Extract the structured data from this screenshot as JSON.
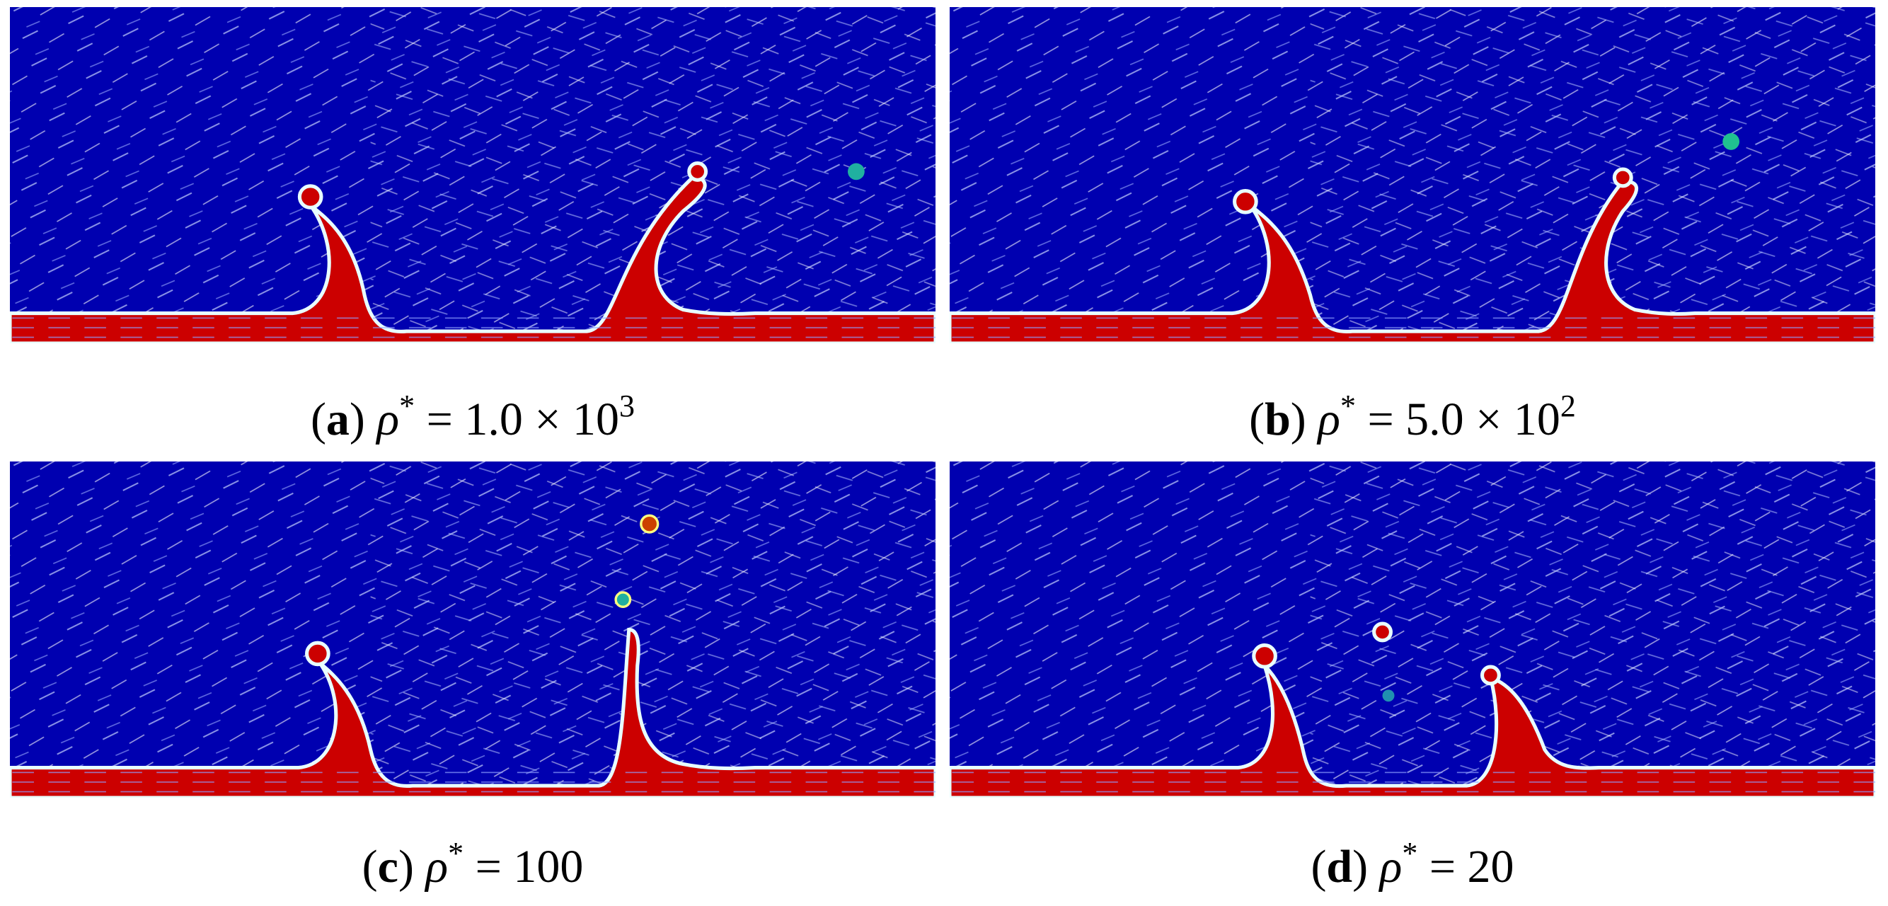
{
  "panels": [
    {
      "label": "a",
      "symbol": "ρ",
      "symbol_sup": "*",
      "rhs": "= 1.0 × 10",
      "rhs_sup": "3"
    },
    {
      "label": "b",
      "symbol": "ρ",
      "symbol_sup": "*",
      "rhs": "= 5.0 × 10",
      "rhs_sup": "2"
    },
    {
      "label": "c",
      "symbol": "ρ",
      "symbol_sup": "*",
      "rhs": "= 100"
    },
    {
      "label": "d",
      "symbol": "ρ",
      "symbol_sup": "*",
      "rhs": "= 20"
    }
  ]
}
